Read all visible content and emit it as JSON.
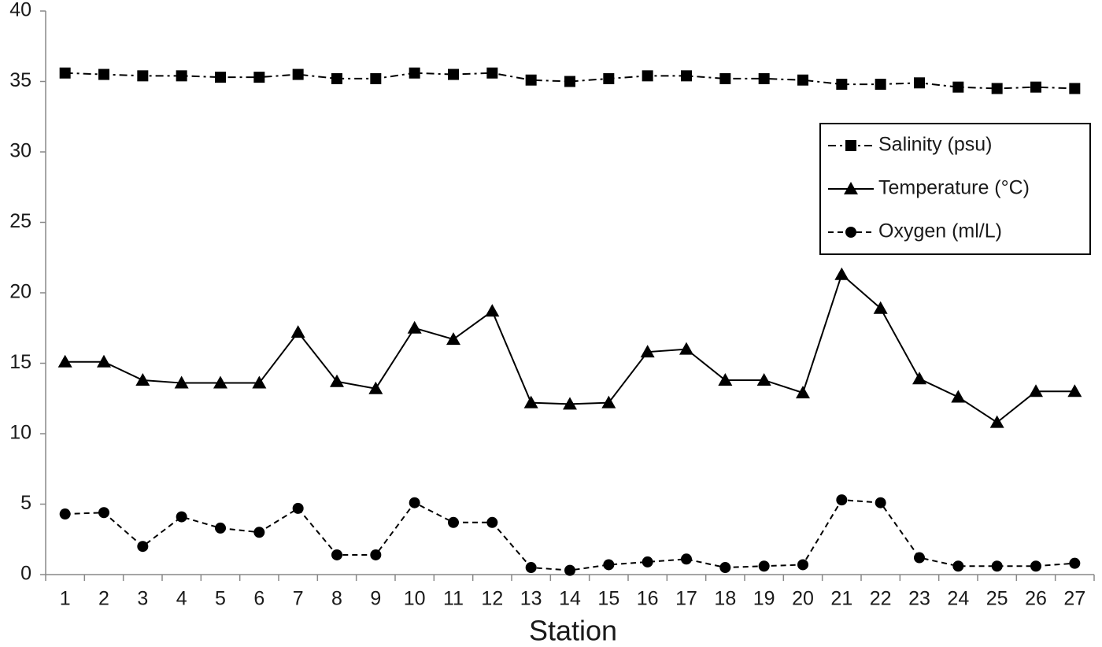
{
  "chart_data": {
    "type": "line",
    "xlabel": "Station",
    "categories": [
      "1",
      "2",
      "3",
      "4",
      "5",
      "6",
      "7",
      "8",
      "9",
      "10",
      "11",
      "12",
      "13",
      "14",
      "15",
      "16",
      "17",
      "18",
      "19",
      "20",
      "21",
      "22",
      "23",
      "24",
      "25",
      "26",
      "27"
    ],
    "series": [
      {
        "name": "Salinity (psu)",
        "color": "#000000",
        "linestyle": "dashdot",
        "marker": "square",
        "values": [
          35.6,
          35.5,
          35.4,
          35.4,
          35.3,
          35.3,
          35.5,
          35.2,
          35.2,
          35.6,
          35.5,
          35.6,
          35.1,
          35.0,
          35.2,
          35.4,
          35.4,
          35.2,
          35.2,
          35.1,
          34.8,
          34.8,
          34.9,
          34.6,
          34.5,
          34.6,
          34.5
        ]
      },
      {
        "name": "Temperature (°C)",
        "color": "#000000",
        "linestyle": "solid",
        "marker": "triangle",
        "values": [
          15.1,
          15.1,
          13.8,
          13.6,
          13.6,
          13.6,
          17.2,
          13.7,
          13.2,
          17.5,
          16.7,
          18.7,
          12.2,
          12.1,
          12.2,
          15.8,
          16.0,
          13.8,
          13.8,
          12.9,
          21.3,
          18.9,
          13.9,
          12.6,
          10.8,
          13.0,
          13.0
        ]
      },
      {
        "name": "Oxygen (ml/L)",
        "color": "#000000",
        "linestyle": "dashed",
        "marker": "circle",
        "values": [
          4.3,
          4.4,
          2.0,
          4.1,
          3.3,
          3.0,
          4.7,
          1.4,
          1.4,
          5.1,
          3.7,
          3.7,
          0.5,
          0.3,
          0.7,
          0.9,
          1.1,
          0.5,
          0.6,
          0.7,
          5.3,
          5.1,
          1.2,
          0.6,
          0.6,
          0.6,
          0.8
        ]
      }
    ],
    "ylim": [
      0,
      40
    ],
    "yticks": [
      0,
      5,
      10,
      15,
      20,
      25,
      30,
      35,
      40
    ],
    "grid": false,
    "legend": "upper right"
  }
}
